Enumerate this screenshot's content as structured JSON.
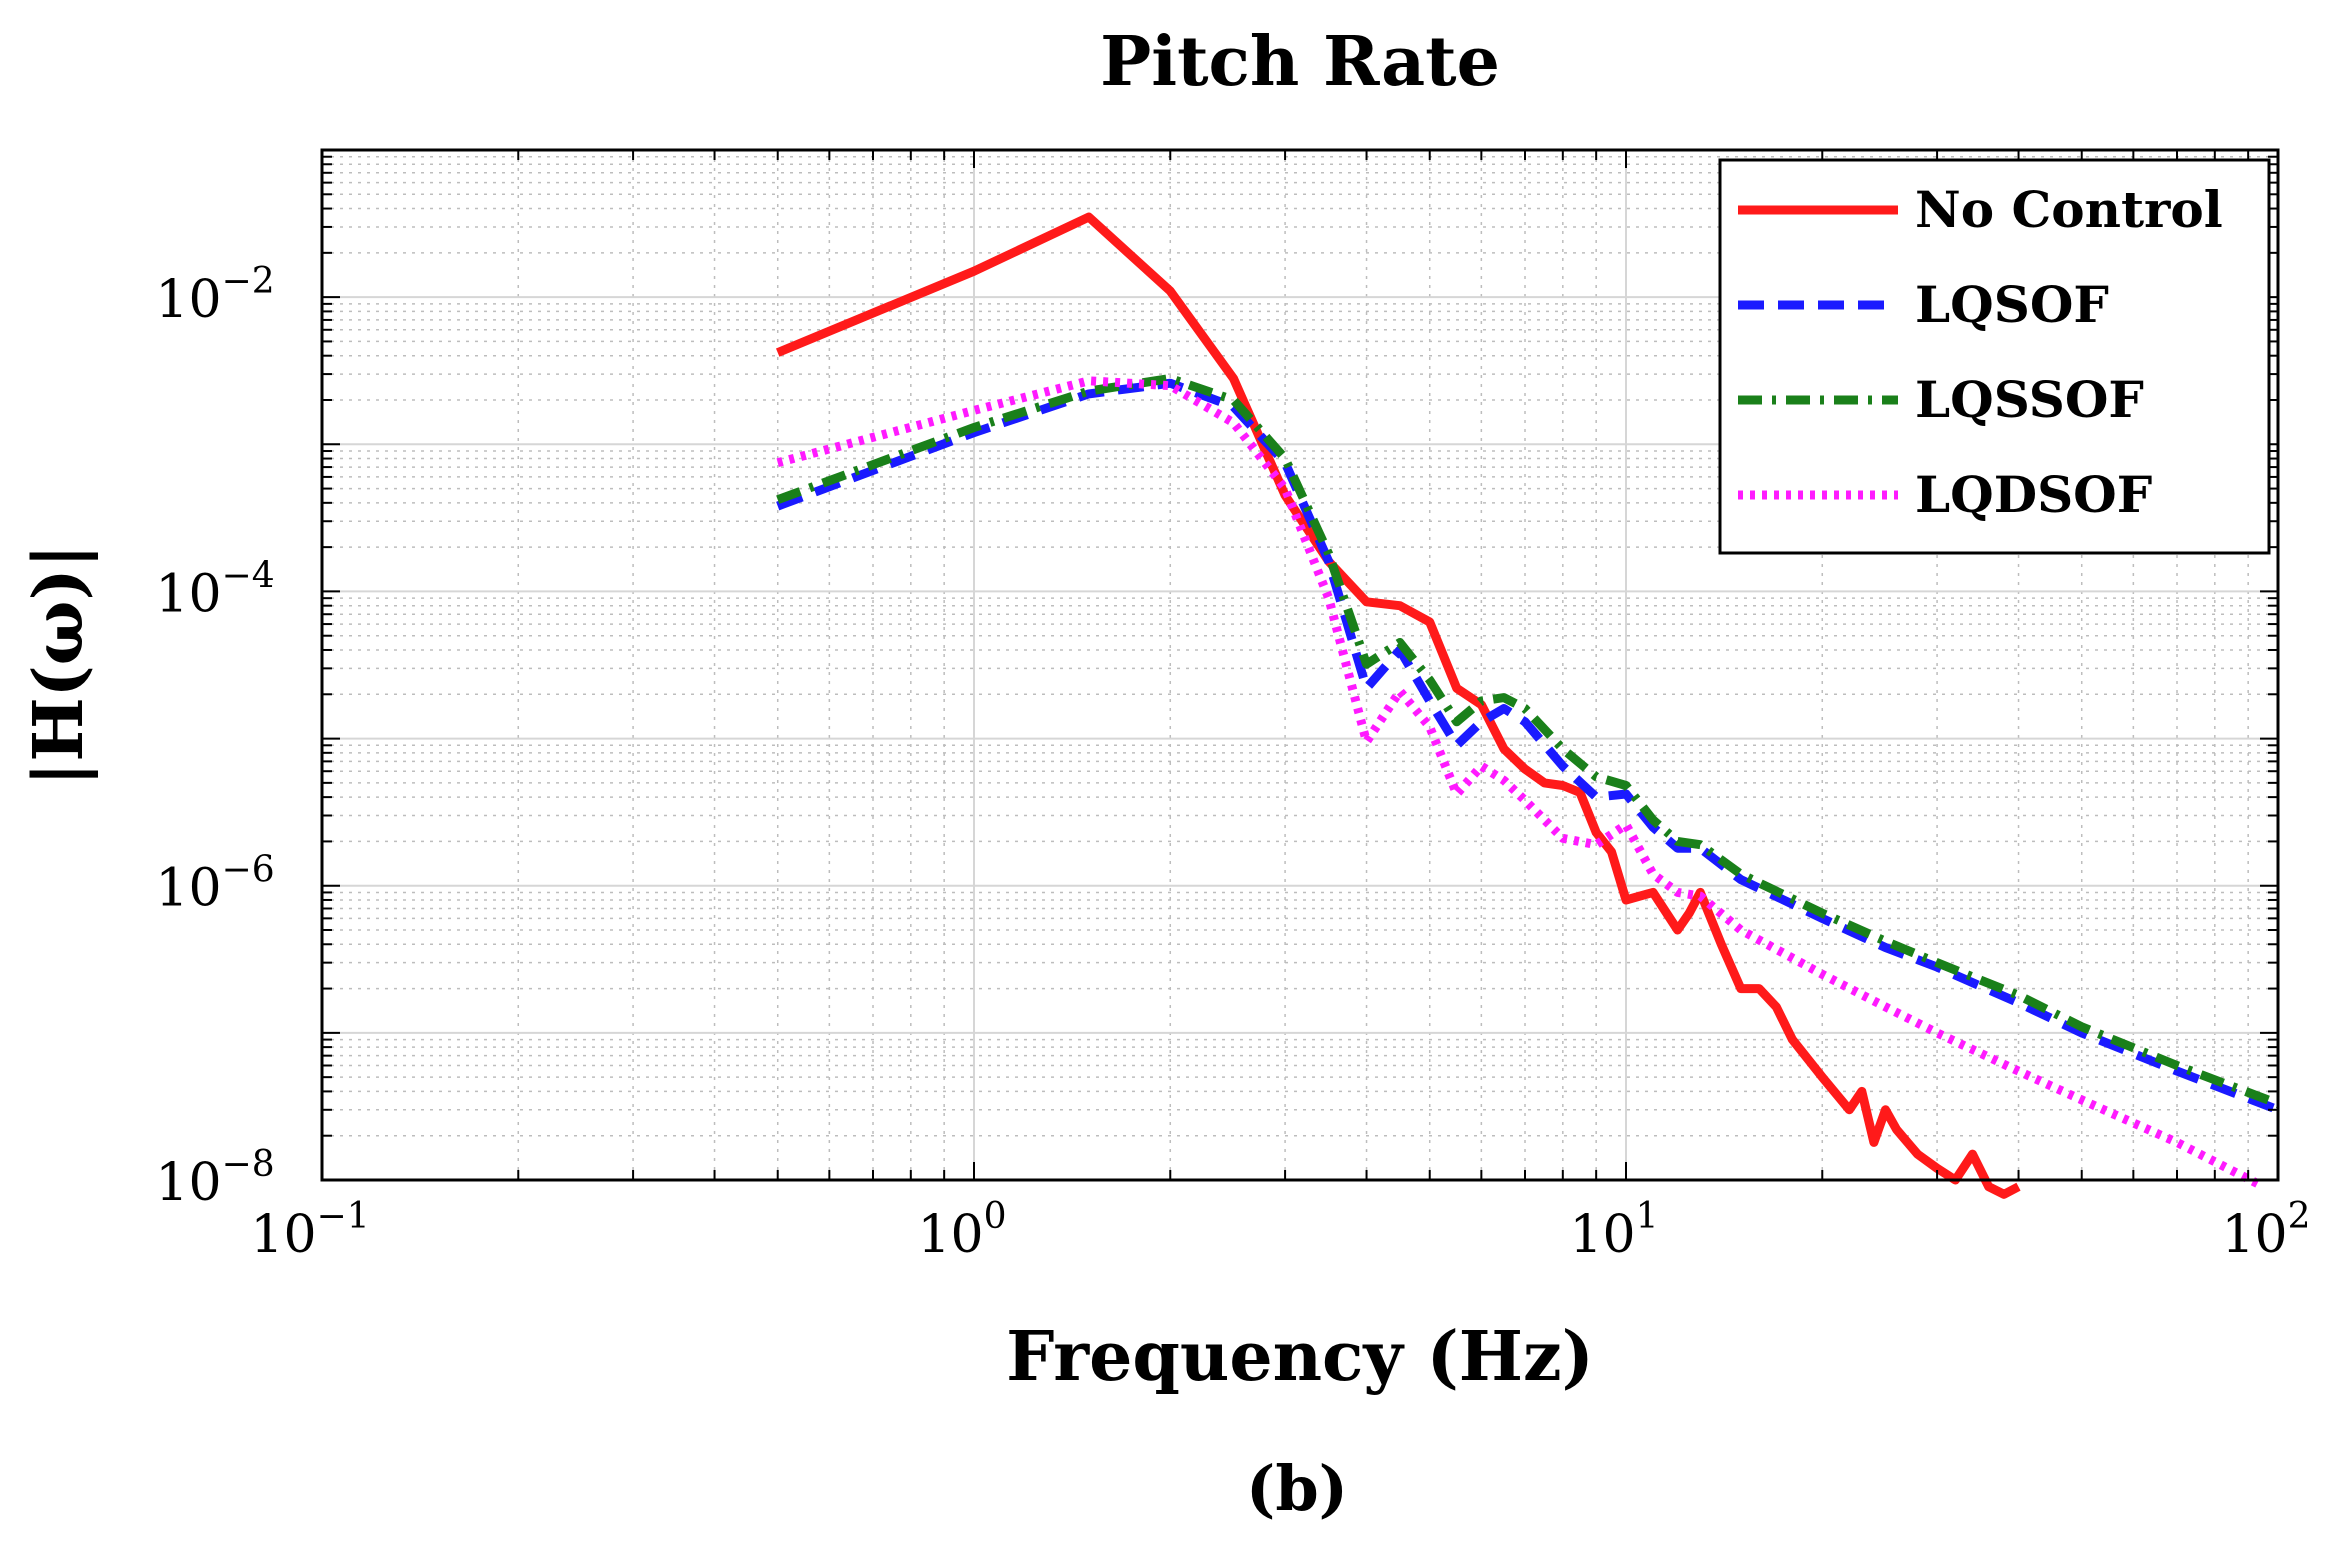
{
  "chart_data": {
    "type": "line",
    "title": "Pitch Rate",
    "xlabel": "Frequency (Hz)",
    "ylabel": "|H(ω)|",
    "caption": "(b)",
    "xscale": "log",
    "yscale": "log",
    "xlim": [
      0.1,
      100
    ],
    "ylim": [
      1e-08,
      0.1
    ],
    "grid": true,
    "legend_position": "top-right",
    "x_ticks": [
      {
        "value": 0.1,
        "base": "10",
        "exp": "−1"
      },
      {
        "value": 1,
        "base": "10",
        "exp": "0"
      },
      {
        "value": 10,
        "base": "10",
        "exp": "1"
      },
      {
        "value": 100,
        "base": "10",
        "exp": "2"
      }
    ],
    "y_ticks": [
      {
        "value": 0.01,
        "base": "10",
        "exp": "−2"
      },
      {
        "value": 0.0001,
        "base": "10",
        "exp": "−4"
      },
      {
        "value": 1e-06,
        "base": "10",
        "exp": "−6"
      },
      {
        "value": 1e-08,
        "base": "10",
        "exp": "−8"
      }
    ],
    "series": [
      {
        "name": "No Control",
        "color": "#ff1a1a",
        "style": "solid",
        "x": [
          0.5,
          1.0,
          1.5,
          2.0,
          2.5,
          3.0,
          3.5,
          4.0,
          4.5,
          5.0,
          5.5,
          6.0,
          6.5,
          7.0,
          7.5,
          8.0,
          8.5,
          9.0,
          9.5,
          10.0,
          11,
          12,
          12.5,
          13,
          14,
          15,
          16,
          17,
          18,
          20,
          22,
          23,
          24,
          25,
          26,
          28,
          30,
          32,
          34,
          36,
          38,
          40
        ],
        "y": [
          0.0042,
          0.015,
          0.035,
          0.011,
          0.0028,
          0.00045,
          0.00016,
          8.5e-05,
          8e-05,
          6.2e-05,
          2.2e-05,
          1.7e-05,
          8.5e-06,
          6.2e-06,
          5e-06,
          4.8e-06,
          4.3e-06,
          2.3e-06,
          1.7e-06,
          8e-07,
          9e-07,
          5e-07,
          6.5e-07,
          9e-07,
          4e-07,
          2e-07,
          2e-07,
          1.5e-07,
          9e-08,
          5e-08,
          3e-08,
          4e-08,
          1.8e-08,
          3e-08,
          2.2e-08,
          1.5e-08,
          1.2e-08,
          1e-08,
          1.5e-08,
          9e-09,
          8e-09,
          9e-09
        ]
      },
      {
        "name": "LQSOF",
        "color": "#1a1aff",
        "style": "dashed",
        "x": [
          0.5,
          1.0,
          1.5,
          2.0,
          2.5,
          3.0,
          3.5,
          4.0,
          4.5,
          5.0,
          5.5,
          6.0,
          6.5,
          7.0,
          8.0,
          9.0,
          10.0,
          11,
          12,
          13,
          15,
          20,
          25,
          30,
          40,
          50,
          70,
          100
        ],
        "y": [
          0.00038,
          0.0012,
          0.0022,
          0.0026,
          0.0018,
          0.00075,
          0.00016,
          2.2e-05,
          4e-05,
          1.8e-05,
          9e-06,
          1.3e-05,
          1.6e-05,
          1.3e-05,
          6.5e-06,
          4e-06,
          4.2e-06,
          2.5e-06,
          1.8e-06,
          1.8e-06,
          1.1e-06,
          6e-07,
          3.8e-07,
          2.8e-07,
          1.6e-07,
          1e-07,
          5.5e-08,
          3e-08
        ]
      },
      {
        "name": "LQSSOF",
        "color": "#1a801a",
        "style": "dashdot",
        "x": [
          0.5,
          1.0,
          1.5,
          2.0,
          2.5,
          3.0,
          3.5,
          4.0,
          4.5,
          5.0,
          5.5,
          6.0,
          6.5,
          7.0,
          8.0,
          9.0,
          10.0,
          11,
          12,
          13,
          15,
          20,
          25,
          30,
          40,
          50,
          70,
          100
        ],
        "y": [
          0.00042,
          0.0013,
          0.0023,
          0.0028,
          0.002,
          0.0008,
          0.00018,
          3.2e-05,
          4.5e-05,
          2.5e-05,
          1.3e-05,
          1.8e-05,
          1.9e-05,
          1.6e-05,
          8.5e-06,
          5.5e-06,
          4.8e-06,
          2.8e-06,
          2e-06,
          1.9e-06,
          1.2e-06,
          6.5e-07,
          4.2e-07,
          3e-07,
          1.8e-07,
          1.1e-07,
          6e-08,
          3.3e-08
        ]
      },
      {
        "name": "LQDSOF",
        "color": "#ff1aff",
        "style": "dotted",
        "x": [
          0.5,
          1.0,
          1.5,
          2.0,
          2.5,
          3.0,
          3.5,
          4.0,
          4.5,
          5.0,
          5.5,
          6.0,
          6.5,
          7.0,
          8.0,
          9.0,
          10.0,
          11,
          12,
          13,
          15,
          20,
          25,
          30,
          40,
          50,
          70,
          95
        ],
        "y": [
          0.00075,
          0.0017,
          0.0027,
          0.0025,
          0.0014,
          0.0005,
          9e-05,
          9.5e-06,
          2.1e-05,
          1.2e-05,
          4.2e-06,
          6.5e-06,
          5.2e-06,
          3.8e-06,
          2.1e-06,
          1.9e-06,
          2.6e-06,
          1.2e-06,
          9e-07,
          8.5e-07,
          5e-07,
          2.5e-07,
          1.5e-07,
          1e-07,
          5.5e-08,
          3.5e-08,
          1.8e-08,
          9e-09
        ]
      }
    ]
  }
}
